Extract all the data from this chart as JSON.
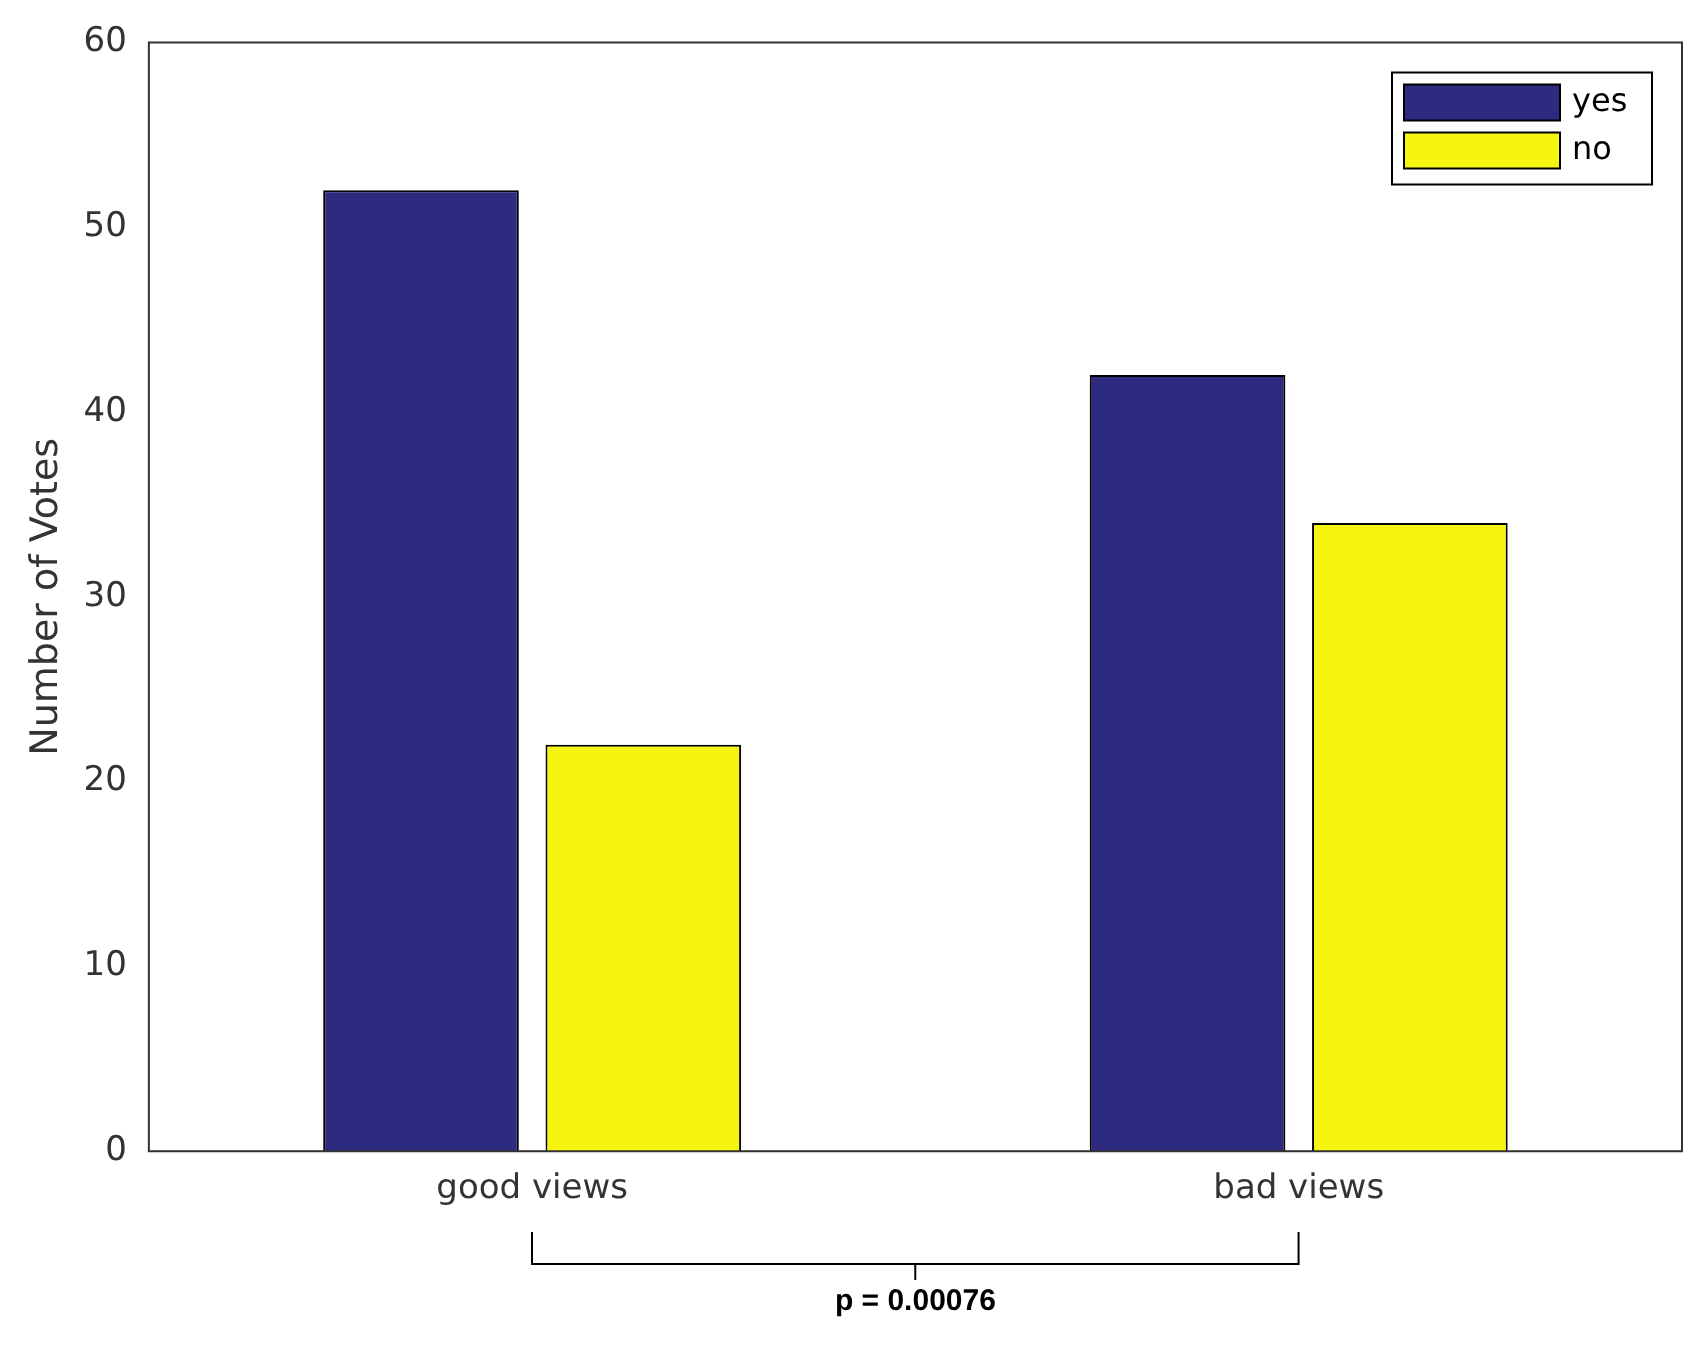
{
  "chart_data": {
    "type": "bar",
    "ylabel": "Number of Votes",
    "categories": [
      "good views",
      "bad views"
    ],
    "series": [
      {
        "name": "yes",
        "color": "#2e2a80",
        "values": [
          52,
          42
        ]
      },
      {
        "name": "no",
        "color": "#f5f50f",
        "values": [
          22,
          34
        ]
      }
    ],
    "ylim": [
      0,
      60
    ],
    "yticks": [
      0,
      10,
      20,
      30,
      40,
      50,
      60
    ],
    "grid": false,
    "legend": "top right",
    "annotations": [
      "p = 0.00076"
    ]
  }
}
